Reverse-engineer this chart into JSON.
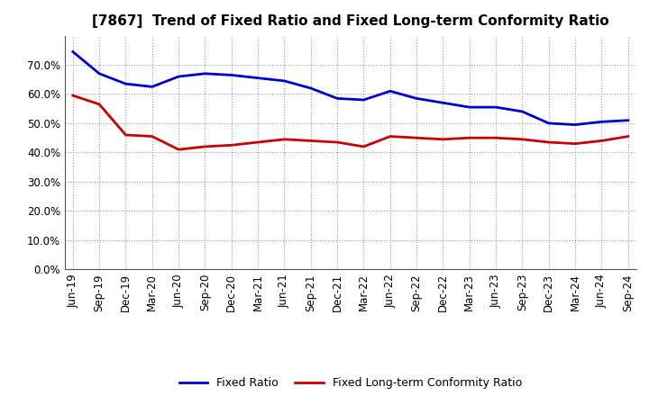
{
  "title": "[7867]  Trend of Fixed Ratio and Fixed Long-term Conformity Ratio",
  "x_labels": [
    "Jun-19",
    "Sep-19",
    "Dec-19",
    "Mar-20",
    "Jun-20",
    "Sep-20",
    "Dec-20",
    "Mar-21",
    "Jun-21",
    "Sep-21",
    "Dec-21",
    "Mar-22",
    "Jun-22",
    "Sep-22",
    "Dec-22",
    "Mar-23",
    "Jun-23",
    "Sep-23",
    "Dec-23",
    "Mar-24",
    "Jun-24",
    "Sep-24"
  ],
  "fixed_ratio": [
    74.5,
    67.0,
    63.5,
    62.5,
    66.0,
    67.0,
    66.5,
    65.5,
    64.5,
    62.0,
    58.5,
    58.0,
    61.0,
    58.5,
    57.0,
    55.5,
    55.5,
    54.0,
    50.0,
    49.5,
    50.5,
    51.0
  ],
  "fixed_lt_ratio": [
    59.5,
    56.5,
    46.0,
    45.5,
    41.0,
    42.0,
    42.5,
    43.5,
    44.5,
    44.0,
    43.5,
    42.0,
    45.5,
    45.0,
    44.5,
    45.0,
    45.0,
    44.5,
    43.5,
    43.0,
    44.0,
    45.5
  ],
  "fixed_ratio_color": "#0000CC",
  "fixed_lt_ratio_color": "#CC0000",
  "ylim": [
    0,
    80
  ],
  "yticks": [
    0,
    10,
    20,
    30,
    40,
    50,
    60,
    70
  ],
  "background_color": "#FFFFFF",
  "grid_color": "#999999",
  "legend_fixed_ratio": "Fixed Ratio",
  "legend_fixed_lt_ratio": "Fixed Long-term Conformity Ratio",
  "title_fontsize": 11,
  "tick_fontsize": 8.5,
  "legend_fontsize": 9
}
